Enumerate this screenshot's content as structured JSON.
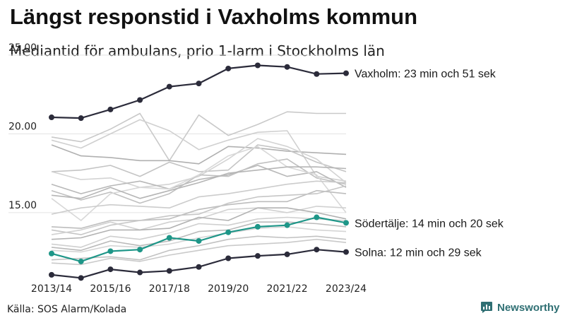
{
  "title": "Längst responstid i Vaxholms kommun",
  "subtitle": "Mediantid för ambulans, prio 1-larm i Stockholms län",
  "source": "Källa: SOS Alarm/Kolada",
  "brand": {
    "name": "Newsworthy",
    "icon": "newsworthy-logo-icon",
    "color": "#2f6f73"
  },
  "chart_data": {
    "type": "line",
    "title": "Längst responstid i Vaxholms kommun",
    "subtitle": "Mediantid för ambulans, prio 1-larm i Stockholms län",
    "x": [
      "2013/14",
      "2014/15",
      "2015/16",
      "2016/17",
      "2017/18",
      "2018/19",
      "2019/20",
      "2020/21",
      "2021/22",
      "2022/23",
      "2023/24"
    ],
    "x_tick_labels": [
      "2013/14",
      "2015/16",
      "2017/18",
      "2019/20",
      "2021/22",
      "2023/24"
    ],
    "ylim": [
      11,
      25
    ],
    "yticks": [
      "15.00",
      "20.00",
      "25.00"
    ],
    "grid": true,
    "legend": "none",
    "highlighted_series": [
      {
        "name": "Vaxholm: 23 min och 51 sek",
        "color": "#2b2b3a",
        "markers": true,
        "values": [
          21.05,
          21.0,
          21.55,
          22.15,
          23.0,
          23.2,
          24.15,
          24.35,
          24.25,
          23.8,
          23.85
        ]
      },
      {
        "name": "Södertälje: 14 min och 20 sek",
        "color": "#1e9688",
        "markers": true,
        "values": [
          12.4,
          11.9,
          12.55,
          12.65,
          13.4,
          13.2,
          13.75,
          14.1,
          14.2,
          14.7,
          14.35
        ]
      },
      {
        "name": "Solna: 12 min och 29 sek",
        "color": "#2b2b3a",
        "markers": true,
        "values": [
          11.05,
          10.85,
          11.4,
          11.2,
          11.3,
          11.55,
          12.1,
          12.25,
          12.35,
          12.65,
          12.5
        ]
      }
    ],
    "background_series": [
      {
        "color": "#c9c9c9",
        "values": [
          19.8,
          19.5,
          20.3,
          21.3,
          18.3,
          21.2,
          19.9,
          20.6,
          21.4,
          21.3,
          21.3
        ]
      },
      {
        "color": "#b0b0b0",
        "values": [
          19.3,
          18.6,
          18.5,
          18.3,
          18.3,
          18.1,
          19.2,
          19.1,
          18.9,
          18.8,
          18.7
        ]
      },
      {
        "color": "#d0d0d0",
        "values": [
          19.6,
          19.1,
          20.0,
          20.9,
          20.2,
          19.0,
          19.6,
          20.1,
          20.2,
          17.3,
          17.0
        ]
      },
      {
        "color": "#c4c4c4",
        "values": [
          17.6,
          17.7,
          18.0,
          17.3,
          18.2,
          17.6,
          17.7,
          19.3,
          19.0,
          18.2,
          17.6
        ]
      },
      {
        "color": "#d3d3d3",
        "values": [
          17.6,
          17.1,
          17.2,
          16.6,
          16.8,
          17.3,
          18.4,
          19.7,
          19.2,
          18.4,
          16.9
        ]
      },
      {
        "color": "#b8b8b8",
        "values": [
          16.8,
          16.2,
          16.7,
          17.0,
          16.5,
          17.1,
          17.4,
          18.0,
          17.3,
          17.6,
          16.6
        ]
      },
      {
        "color": "#c0c0c0",
        "values": [
          16.4,
          15.8,
          16.3,
          15.6,
          16.2,
          17.4,
          17.3,
          18.1,
          18.4,
          17.2,
          16.8
        ]
      },
      {
        "color": "#d8d8d8",
        "values": [
          15.9,
          14.5,
          16.2,
          16.6,
          16.5,
          17.4,
          18.6,
          19.2,
          17.9,
          17.4,
          15.0
        ]
      },
      {
        "color": "#b5b5b5",
        "values": [
          16.1,
          15.9,
          16.6,
          15.9,
          16.4,
          16.9,
          17.5,
          17.7,
          17.9,
          17.9,
          17.8
        ]
      },
      {
        "color": "#cccccc",
        "values": [
          14.9,
          15.3,
          15.5,
          15.4,
          15.3,
          16.0,
          16.2,
          16.5,
          16.8,
          17.0,
          16.9
        ]
      },
      {
        "color": "#bdbdbd",
        "values": [
          14.1,
          14.0,
          14.5,
          14.5,
          14.6,
          15.2,
          15.5,
          15.7,
          15.7,
          16.4,
          16.2
        ]
      },
      {
        "color": "#c6c6c6",
        "values": [
          13.9,
          13.6,
          14.2,
          14.5,
          14.8,
          14.9,
          15.6,
          16.0,
          16.1,
          16.2,
          16.7
        ]
      },
      {
        "color": "#d1d1d1",
        "values": [
          13.6,
          13.9,
          14.4,
          13.9,
          14.4,
          14.6,
          15.2,
          15.3,
          15.0,
          15.4,
          15.3
        ]
      },
      {
        "color": "#b2b2b2",
        "values": [
          13.3,
          13.4,
          13.9,
          13.9,
          14.0,
          14.7,
          14.5,
          15.3,
          15.3,
          15.0,
          14.6
        ]
      },
      {
        "color": "#cfcfcf",
        "values": [
          13.0,
          12.8,
          13.5,
          13.3,
          13.7,
          14.3,
          14.2,
          14.6,
          14.7,
          14.6,
          14.5
        ]
      },
      {
        "color": "#bababa",
        "values": [
          12.8,
          12.6,
          13.2,
          12.9,
          13.2,
          13.8,
          13.9,
          14.4,
          14.4,
          14.3,
          14.1
        ]
      },
      {
        "color": "#d5d5d5",
        "values": [
          12.6,
          12.5,
          12.9,
          12.8,
          13.0,
          13.4,
          13.7,
          14.0,
          14.1,
          13.9,
          13.8
        ]
      },
      {
        "color": "#c2c2c2",
        "values": [
          12.0,
          12.1,
          12.2,
          12.0,
          12.6,
          12.9,
          13.3,
          13.5,
          13.4,
          13.5,
          13.3
        ]
      },
      {
        "color": "#cacaca",
        "values": [
          11.8,
          11.7,
          12.1,
          11.9,
          12.3,
          12.6,
          12.9,
          13.0,
          13.1,
          13.3,
          13.1
        ]
      }
    ]
  }
}
